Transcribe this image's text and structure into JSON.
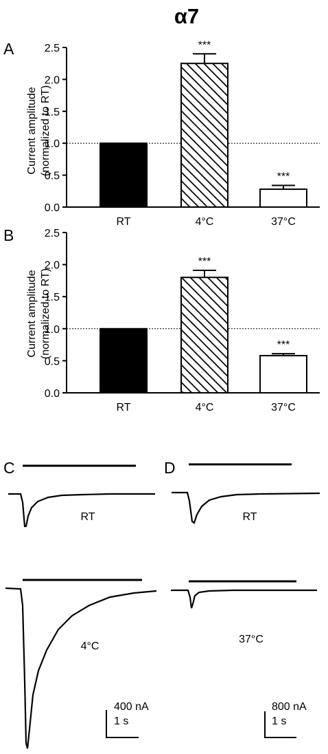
{
  "figure_title": "α7",
  "chart_data": [
    {
      "type": "bar",
      "panel_label": "A",
      "categories": [
        "RT",
        "4°C",
        "37°C"
      ],
      "values": [
        1.0,
        2.25,
        0.28
      ],
      "errors": [
        0,
        0.15,
        0.06
      ],
      "significance": [
        "",
        "***",
        "***"
      ],
      "fills": [
        "solid",
        "hatched",
        "open"
      ],
      "ylabel": "Current amplitude",
      "ylabel2": "(normalized to RT)",
      "ylim": [
        0,
        2.5
      ],
      "yticks": [
        0.0,
        0.5,
        1.0,
        1.5,
        2.0,
        2.5
      ],
      "ytick_labels": [
        "0.0",
        "0.5",
        "1.0",
        "1.5",
        "2.0",
        "2.5"
      ],
      "reference_line": 1.0,
      "grid": false
    },
    {
      "type": "bar",
      "panel_label": "B",
      "categories": [
        "RT",
        "4°C",
        "37°C"
      ],
      "values": [
        1.0,
        1.8,
        0.58
      ],
      "errors": [
        0,
        0.11,
        0.03
      ],
      "significance": [
        "",
        "***",
        "***"
      ],
      "fills": [
        "solid",
        "hatched",
        "open"
      ],
      "ylabel": "Current amplitude",
      "ylabel2": "(normalized to RT)",
      "ylim": [
        0,
        2.5
      ],
      "yticks": [
        0.0,
        0.5,
        1.0,
        1.5,
        2.0,
        2.5
      ],
      "ytick_labels": [
        "0.0",
        "0.5",
        "1.0",
        "1.5",
        "2.0",
        "2.5"
      ],
      "reference_line": 1.0,
      "grid": false
    }
  ],
  "traces": {
    "C": {
      "panel_label": "C",
      "top_label": "RT",
      "bottom_label": "4°C",
      "scale_current": "400 nA",
      "scale_time": "1 s"
    },
    "D": {
      "panel_label": "D",
      "top_label": "RT",
      "bottom_label": "37°C",
      "scale_current": "800 nA",
      "scale_time": "1 s"
    }
  },
  "colors": {
    "ink": "#000000",
    "background": "#ffffff"
  }
}
